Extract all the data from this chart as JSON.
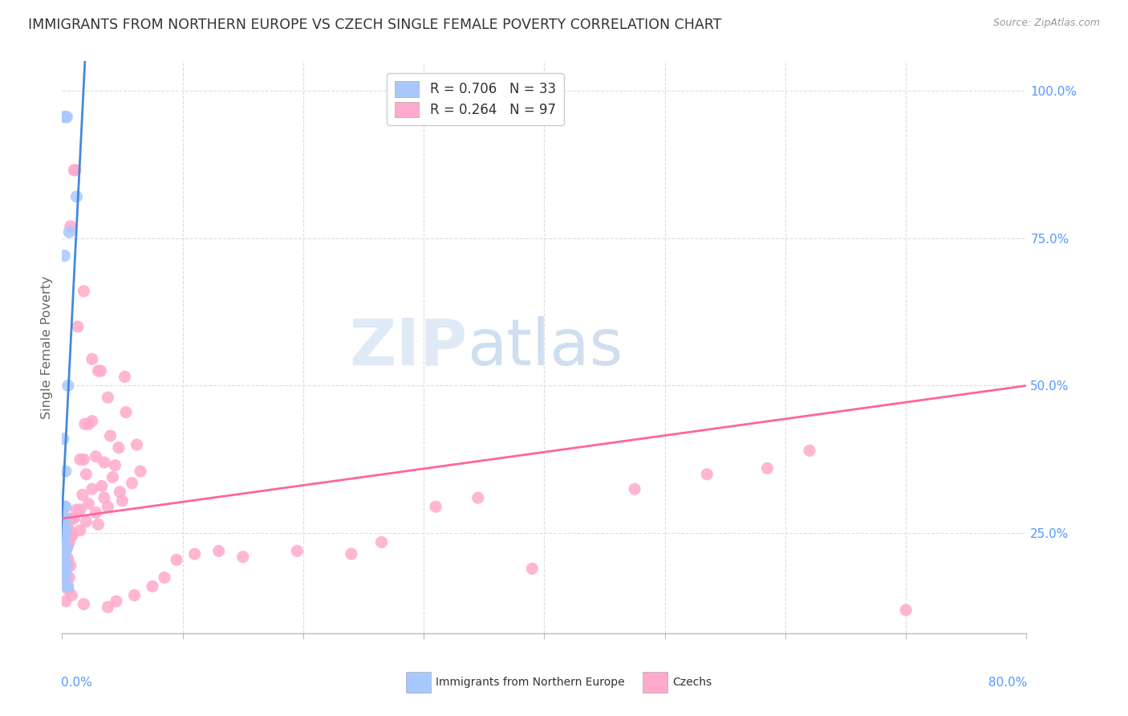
{
  "title": "IMMIGRANTS FROM NORTHERN EUROPE VS CZECH SINGLE FEMALE POVERTY CORRELATION CHART",
  "source": "Source: ZipAtlas.com",
  "ylabel": "Single Female Poverty",
  "ylabel_right_ticks": [
    "25.0%",
    "50.0%",
    "75.0%",
    "100.0%"
  ],
  "ylabel_right_values": [
    0.25,
    0.5,
    0.75,
    1.0
  ],
  "xlim": [
    0.0,
    0.8
  ],
  "ylim": [
    0.08,
    1.05
  ],
  "watermark": "ZIPatlas",
  "blue_scatter": [
    [
      0.001,
      0.955
    ],
    [
      0.003,
      0.955
    ],
    [
      0.004,
      0.955
    ],
    [
      0.002,
      0.72
    ],
    [
      0.006,
      0.76
    ],
    [
      0.005,
      0.5
    ],
    [
      0.012,
      0.82
    ],
    [
      0.001,
      0.41
    ],
    [
      0.003,
      0.355
    ],
    [
      0.001,
      0.295
    ],
    [
      0.002,
      0.295
    ],
    [
      0.003,
      0.295
    ],
    [
      0.002,
      0.275
    ],
    [
      0.003,
      0.275
    ],
    [
      0.001,
      0.265
    ],
    [
      0.002,
      0.265
    ],
    [
      0.001,
      0.255
    ],
    [
      0.002,
      0.255
    ],
    [
      0.003,
      0.255
    ],
    [
      0.001,
      0.245
    ],
    [
      0.002,
      0.245
    ],
    [
      0.001,
      0.235
    ],
    [
      0.002,
      0.235
    ],
    [
      0.003,
      0.225
    ],
    [
      0.004,
      0.225
    ],
    [
      0.001,
      0.21
    ],
    [
      0.002,
      0.21
    ],
    [
      0.003,
      0.195
    ],
    [
      0.004,
      0.195
    ],
    [
      0.002,
      0.18
    ],
    [
      0.003,
      0.18
    ],
    [
      0.004,
      0.16
    ],
    [
      0.005,
      0.16
    ]
  ],
  "pink_scatter": [
    [
      0.01,
      0.865
    ],
    [
      0.011,
      0.865
    ],
    [
      0.007,
      0.77
    ],
    [
      0.018,
      0.66
    ],
    [
      0.013,
      0.6
    ],
    [
      0.025,
      0.545
    ],
    [
      0.03,
      0.525
    ],
    [
      0.032,
      0.525
    ],
    [
      0.052,
      0.515
    ],
    [
      0.038,
      0.48
    ],
    [
      0.053,
      0.455
    ],
    [
      0.025,
      0.44
    ],
    [
      0.019,
      0.435
    ],
    [
      0.022,
      0.435
    ],
    [
      0.04,
      0.415
    ],
    [
      0.062,
      0.4
    ],
    [
      0.047,
      0.395
    ],
    [
      0.028,
      0.38
    ],
    [
      0.015,
      0.375
    ],
    [
      0.018,
      0.375
    ],
    [
      0.035,
      0.37
    ],
    [
      0.044,
      0.365
    ],
    [
      0.065,
      0.355
    ],
    [
      0.02,
      0.35
    ],
    [
      0.042,
      0.345
    ],
    [
      0.058,
      0.335
    ],
    [
      0.033,
      0.33
    ],
    [
      0.025,
      0.325
    ],
    [
      0.048,
      0.32
    ],
    [
      0.017,
      0.315
    ],
    [
      0.035,
      0.31
    ],
    [
      0.05,
      0.305
    ],
    [
      0.022,
      0.3
    ],
    [
      0.038,
      0.295
    ],
    [
      0.012,
      0.29
    ],
    [
      0.015,
      0.29
    ],
    [
      0.028,
      0.285
    ],
    [
      0.005,
      0.275
    ],
    [
      0.008,
      0.275
    ],
    [
      0.01,
      0.275
    ],
    [
      0.02,
      0.27
    ],
    [
      0.03,
      0.265
    ],
    [
      0.003,
      0.26
    ],
    [
      0.005,
      0.26
    ],
    [
      0.015,
      0.255
    ],
    [
      0.007,
      0.25
    ],
    [
      0.009,
      0.25
    ],
    [
      0.003,
      0.245
    ],
    [
      0.005,
      0.245
    ],
    [
      0.008,
      0.245
    ],
    [
      0.002,
      0.24
    ],
    [
      0.004,
      0.24
    ],
    [
      0.006,
      0.235
    ],
    [
      0.003,
      0.23
    ],
    [
      0.005,
      0.23
    ],
    [
      0.002,
      0.225
    ],
    [
      0.004,
      0.225
    ],
    [
      0.001,
      0.22
    ],
    [
      0.003,
      0.22
    ],
    [
      0.002,
      0.215
    ],
    [
      0.001,
      0.21
    ],
    [
      0.004,
      0.21
    ],
    [
      0.002,
      0.205
    ],
    [
      0.005,
      0.205
    ],
    [
      0.001,
      0.2
    ],
    [
      0.003,
      0.2
    ],
    [
      0.007,
      0.195
    ],
    [
      0.001,
      0.19
    ],
    [
      0.004,
      0.19
    ],
    [
      0.002,
      0.185
    ],
    [
      0.003,
      0.175
    ],
    [
      0.006,
      0.175
    ],
    [
      0.004,
      0.165
    ],
    [
      0.005,
      0.155
    ],
    [
      0.008,
      0.145
    ],
    [
      0.003,
      0.135
    ],
    [
      0.018,
      0.13
    ],
    [
      0.39,
      0.19
    ],
    [
      0.31,
      0.295
    ],
    [
      0.345,
      0.31
    ],
    [
      0.475,
      0.325
    ],
    [
      0.535,
      0.35
    ],
    [
      0.585,
      0.36
    ],
    [
      0.62,
      0.39
    ],
    [
      0.7,
      0.12
    ],
    [
      0.24,
      0.215
    ],
    [
      0.265,
      0.235
    ],
    [
      0.195,
      0.22
    ],
    [
      0.15,
      0.21
    ],
    [
      0.095,
      0.205
    ],
    [
      0.11,
      0.215
    ],
    [
      0.13,
      0.22
    ],
    [
      0.085,
      0.175
    ],
    [
      0.075,
      0.16
    ],
    [
      0.06,
      0.145
    ],
    [
      0.045,
      0.135
    ],
    [
      0.038,
      0.125
    ]
  ],
  "blue_line_x": [
    -0.005,
    0.019
  ],
  "blue_line_y": [
    0.08,
    1.05
  ],
  "pink_line_x": [
    0.0,
    0.8
  ],
  "pink_line_y": [
    0.275,
    0.5
  ],
  "background_color": "#ffffff",
  "blue_color": "#a8c8ff",
  "pink_color": "#ffaacc",
  "blue_line_color": "#4488dd",
  "pink_line_color": "#ff6699",
  "grid_color": "#dddddd",
  "title_color": "#333333",
  "axis_label_color": "#5599ff",
  "watermark_color_zip": "#c8d8ee",
  "watermark_color_atlas": "#aac8e8",
  "watermark_alpha": 0.6
}
